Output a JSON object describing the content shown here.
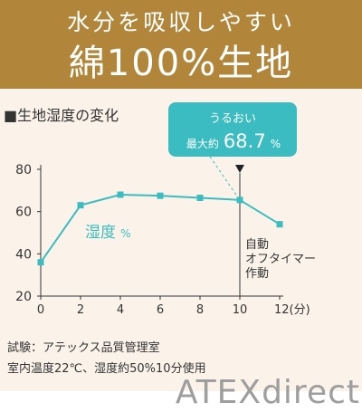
{
  "header": {
    "line1": "水分を吸収しやすい",
    "line2": "綿100%生地"
  },
  "chart_title": "■生地湿度の変化",
  "callout": {
    "line1": "うるおい",
    "prefix": "最大約",
    "value": "68.7",
    "unit": "%"
  },
  "series_label": {
    "main": "湿度",
    "unit": "%"
  },
  "auto_off_lines": [
    "自動",
    "オフタイマー",
    "作動"
  ],
  "footnotes": [
    "試験：アテックス品質管理室",
    "室内温度22℃、湿度約50%10分使用"
  ],
  "watermark": "ATEXdirect",
  "colors": {
    "header": "#b1863a",
    "panel": "#fbf3e9",
    "series": "#3bbcc0",
    "callout": "#3bbcc0"
  },
  "chart_data": {
    "type": "line",
    "x": [
      0,
      2,
      4,
      6,
      8,
      10,
      12
    ],
    "x_tick_labels": [
      "0",
      "2",
      "4",
      "6",
      "8",
      "10",
      "12(分)"
    ],
    "y_ticks": [
      20,
      40,
      60,
      80
    ],
    "xlim": [
      0,
      12
    ],
    "ylim": [
      20,
      80
    ],
    "series": [
      {
        "name": "湿度%",
        "values": [
          36,
          63,
          68,
          67.5,
          66.5,
          65.5,
          54
        ]
      }
    ],
    "marker_x": 10,
    "grid": false
  }
}
